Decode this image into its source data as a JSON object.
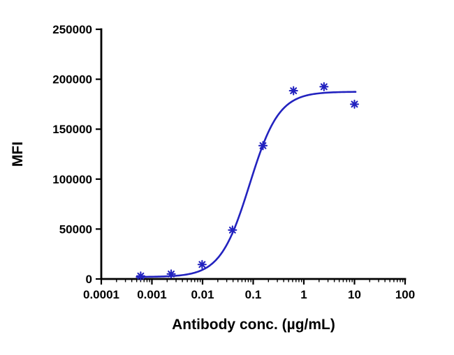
{
  "chart_data": {
    "type": "scatter",
    "title": "",
    "xlabel": "Antibody conc. (µg/mL)",
    "ylabel": "MFI",
    "x_scale": "log",
    "xlim": [
      0.0001,
      100
    ],
    "ylim": [
      0,
      250000
    ],
    "x_ticks": [
      0.0001,
      0.001,
      0.01,
      0.1,
      1,
      10,
      100
    ],
    "x_tick_labels": [
      "0.0001",
      "0.001",
      "0.01",
      "0.1",
      "1",
      "10",
      "100"
    ],
    "y_ticks": [
      0,
      50000,
      100000,
      150000,
      200000,
      250000
    ],
    "y_tick_labels": [
      "0",
      "50000",
      "100000",
      "150000",
      "200000",
      "250000"
    ],
    "grid": false,
    "legend": false,
    "axis_color": "#000000",
    "series": [
      {
        "name": "MFI",
        "marker": "asterisk",
        "color": "#2222bf",
        "x": [
          0.0006,
          0.0024,
          0.0098,
          0.039,
          0.156,
          0.625,
          2.5,
          10
        ],
        "y": [
          3000,
          5000,
          14500,
          49000,
          133500,
          188500,
          192500,
          175000
        ]
      }
    ],
    "fit": {
      "type": "4PL_sigmoid",
      "bottom": 2000,
      "top": 187500,
      "ec50": 0.085,
      "hill": 1.5,
      "color": "#2222bf",
      "x_range": [
        0.0005,
        10.5
      ]
    }
  }
}
